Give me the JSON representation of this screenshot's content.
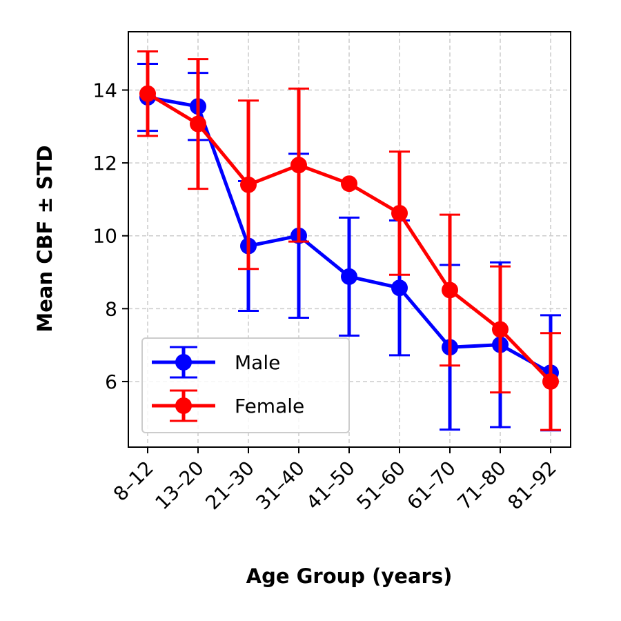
{
  "chart_data": {
    "type": "line",
    "title": "",
    "xlabel": "Age Group (years)",
    "ylabel": "Mean CBF ± STD",
    "categories": [
      "8–12",
      "13–20",
      "21–30",
      "31–40",
      "41–50",
      "51–60",
      "61–70",
      "71–80",
      "81–92"
    ],
    "yticks": [
      6,
      8,
      10,
      12,
      14
    ],
    "ylim": [
      4.2,
      15.6
    ],
    "grid": true,
    "legend_position": "lower-left",
    "series": [
      {
        "name": "Male",
        "color": "#0000ff",
        "values": [
          13.8,
          13.55,
          9.72,
          10.0,
          8.88,
          8.57,
          6.94,
          7.01,
          6.24
        ],
        "errors": [
          0.92,
          0.92,
          1.78,
          2.25,
          1.62,
          1.85,
          2.26,
          2.26,
          1.58
        ]
      },
      {
        "name": "Female",
        "color": "#ff0000",
        "values": [
          13.9,
          13.07,
          11.4,
          11.94,
          11.43,
          10.62,
          8.51,
          7.43,
          6.0
        ],
        "errors": [
          1.16,
          1.78,
          2.31,
          2.1,
          0.0,
          1.69,
          2.07,
          1.73,
          1.33
        ]
      }
    ]
  }
}
